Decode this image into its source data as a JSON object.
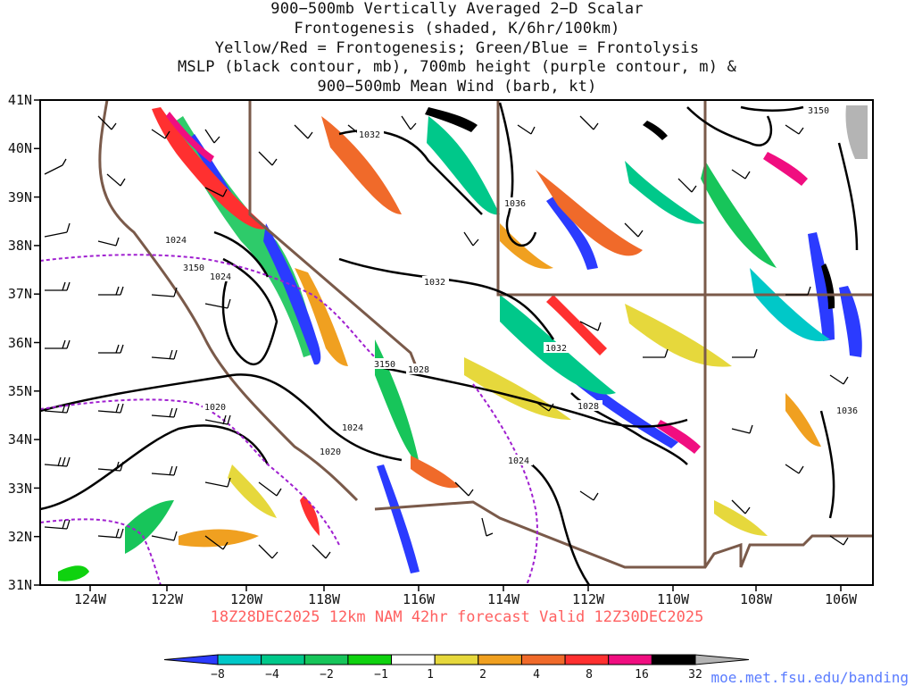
{
  "title": {
    "lines": [
      "900−500mb Vertically Averaged 2−D Scalar",
      "Frontogenesis (shaded, K/6hr/100km)",
      "Yellow/Red = Frontogenesis;  Green/Blue = Frontolysis",
      "MSLP (black contour, mb), 700mb height (purple contour, m) &",
      "900−500mb Mean Wind (barb, kt)"
    ]
  },
  "axes": {
    "lat_labels": [
      "41N",
      "40N",
      "39N",
      "38N",
      "37N",
      "36N",
      "35N",
      "34N",
      "33N",
      "32N",
      "31N"
    ],
    "lon_labels": [
      "124W",
      "122W",
      "120W",
      "118W",
      "116W",
      "114W",
      "112W",
      "110W",
      "108W",
      "106W"
    ],
    "lat_range": [
      31,
      41
    ],
    "lon_range": [
      -125,
      -105
    ]
  },
  "contour_labels": {
    "mslp": [
      "1032",
      "1036",
      "1024",
      "1024",
      "1032",
      "1028",
      "1032",
      "1028",
      "1024",
      "1024",
      "1020",
      "1020",
      "1036"
    ],
    "height_700mb": [
      "3150",
      "3150",
      "3150"
    ]
  },
  "colorbar": {
    "labels": [
      "−8",
      "−4",
      "−2",
      "−1",
      "1",
      "2",
      "4",
      "8",
      "16",
      "32"
    ],
    "colors": [
      "#2b3bff",
      "#00c8c8",
      "#00c88a",
      "#17c55a",
      "#0fd20f",
      "#ffffff",
      "#e6d83c",
      "#f0a020",
      "#f06a2a",
      "#ff3030",
      "#f00e80",
      "#000000",
      "#b4b4b4"
    ]
  },
  "colors": {
    "mslp_contour": "#000000",
    "height_contour": "#a020d0",
    "state_border": "#7a5a4a",
    "barb": "#000000",
    "footer_text": "#ff6060",
    "url_text": "#5a7cff"
  },
  "footer": {
    "run_info": "18Z28DEC2025 12km NAM 42hr forecast Valid 12Z30DEC2025",
    "url": "moe.met.fsu.edu/banding"
  }
}
